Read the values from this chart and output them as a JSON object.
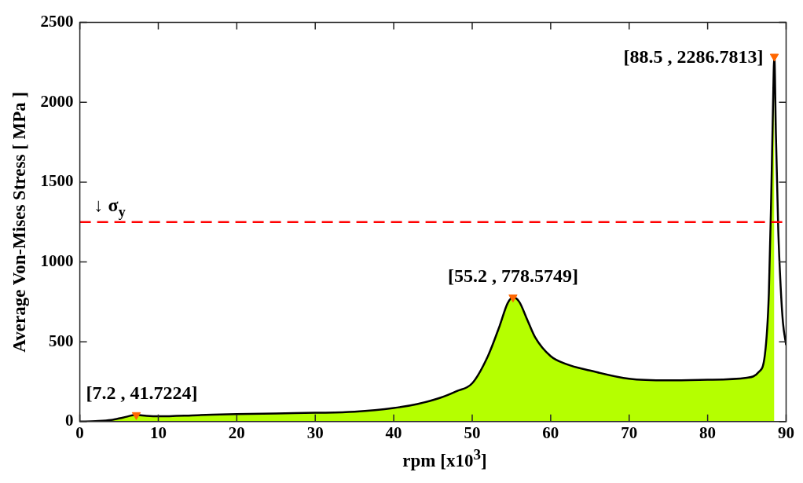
{
  "chart_data": {
    "type": "area",
    "xlabel": "rpm [x10$^{3}$]",
    "ylabel": "Average Von-Mises Stress [ MPa ]",
    "xlim": [
      0,
      90
    ],
    "xticks": [
      0,
      10,
      20,
      30,
      40,
      50,
      60,
      70,
      80,
      90
    ],
    "ylim": [
      0,
      2500
    ],
    "yticks": [
      0,
      500,
      1000,
      1500,
      2000,
      2500
    ],
    "grid": false,
    "legend": false,
    "series": [
      {
        "color": "#b5ff00",
        "x": [
          0,
          2,
          4,
          5.5,
          7.2,
          8.5,
          10,
          15,
          20,
          25,
          30,
          35,
          40,
          43,
          46,
          48,
          50,
          52,
          53.5,
          54.5,
          55.2,
          56,
          57,
          58,
          60,
          62,
          65,
          70,
          75,
          80,
          85,
          86.5,
          87.3,
          87.8,
          88.1,
          88.3,
          88.5
        ],
        "values": [
          0,
          3,
          10,
          25,
          41.7224,
          36,
          33,
          40,
          47,
          51,
          55,
          62,
          85,
          110,
          150,
          190,
          240,
          410,
          600,
          740,
          778.5749,
          750,
          640,
          530,
          410,
          360,
          320,
          268,
          258,
          262,
          275,
          310,
          420,
          800,
          1400,
          1900,
          2286.7813
        ]
      },
      {
        "type": "line",
        "color": "#000000",
        "x": [
          0,
          2,
          4,
          5.5,
          7.2,
          8.5,
          10,
          15,
          20,
          25,
          30,
          35,
          40,
          43,
          46,
          48,
          50,
          52,
          53.5,
          54.5,
          55.2,
          56,
          57,
          58,
          60,
          62,
          65,
          70,
          75,
          80,
          85,
          86.5,
          87.3,
          87.8,
          88.1,
          88.3,
          88.5,
          88.7,
          89,
          89.3,
          89.6,
          90
        ],
        "values": [
          0,
          3,
          10,
          25,
          41.7224,
          36,
          33,
          40,
          47,
          51,
          55,
          62,
          85,
          110,
          150,
          190,
          240,
          410,
          600,
          740,
          778.5749,
          750,
          640,
          530,
          410,
          360,
          320,
          268,
          258,
          262,
          275,
          310,
          420,
          800,
          1400,
          1900,
          2286.7813,
          1800,
          1200,
          850,
          620,
          480
        ]
      },
      {
        "type": "scatter",
        "color": "#ff6600",
        "marker": "triangle",
        "x": [
          7.2,
          55.2,
          88.5
        ],
        "values": [
          41.7224,
          778.5749,
          2286.7813
        ]
      }
    ],
    "ref_lines": [
      {
        "axis": "y",
        "value": 1250,
        "label": "↓ σ$_{y}$",
        "color": "#ff0000",
        "line_style": "dashed"
      }
    ],
    "annotations": [
      {
        "text": "[7.2 , 41.7224]",
        "x": 7.2,
        "y": 41.7224
      },
      {
        "text": "[55.2 , 778.5749]",
        "x": 55.2,
        "y": 778.5749
      },
      {
        "text": "[88.5 , 2286.7813]",
        "x": 88.5,
        "y": 2286.7813
      }
    ]
  }
}
